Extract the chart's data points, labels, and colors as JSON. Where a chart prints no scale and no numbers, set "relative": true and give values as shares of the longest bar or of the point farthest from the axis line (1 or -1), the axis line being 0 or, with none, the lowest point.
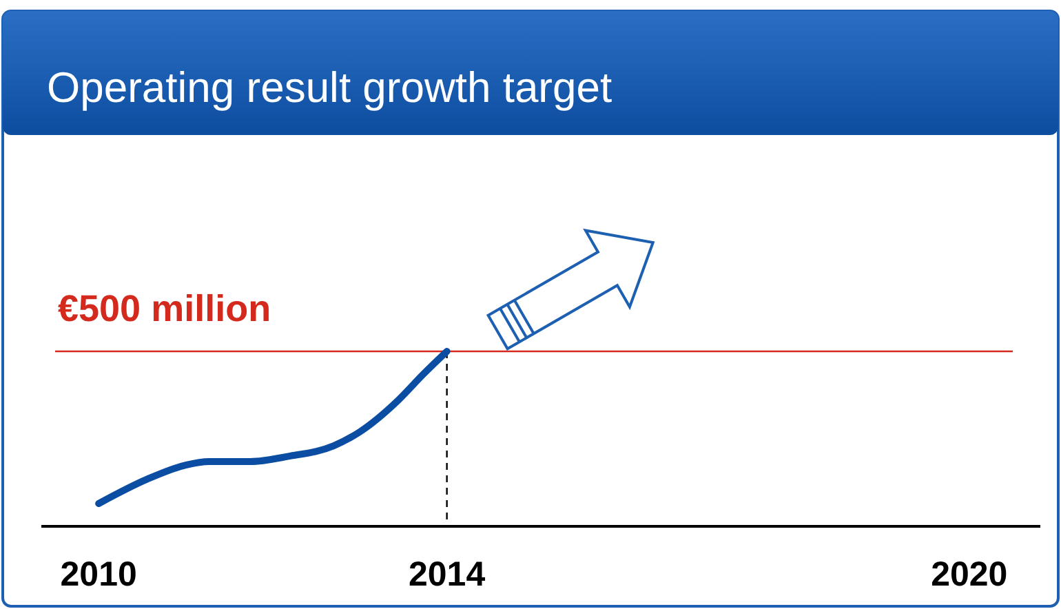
{
  "chart_data": {
    "type": "line",
    "title": "Operating result growth target",
    "relative": true,
    "x": [
      2010,
      2010.56,
      2011.0,
      2011.27,
      2011.74,
      2012.18,
      2012.7,
      2013.0,
      2013.44,
      2013.73,
      2014
    ],
    "series": [
      {
        "color": "#0a4da3",
        "values": [
          0.13,
          0.27,
          0.35,
          0.37,
          0.37,
          0.4,
          0.46,
          0.54,
          0.72,
          0.87,
          1
        ]
      }
    ],
    "xlim": [
      2009.5,
      2020.5
    ],
    "xticks": [
      2010,
      2014,
      2020
    ],
    "ref_lines": [
      {
        "axis": "y",
        "value": 1,
        "label": "€500 million",
        "color": "#d42a1e",
        "line_style": "solid"
      },
      {
        "axis": "x",
        "value": 2014,
        "color": "#000000",
        "line_style": "dashed"
      }
    ],
    "marker": "none",
    "line_style": "solid",
    "grid": false
  }
}
